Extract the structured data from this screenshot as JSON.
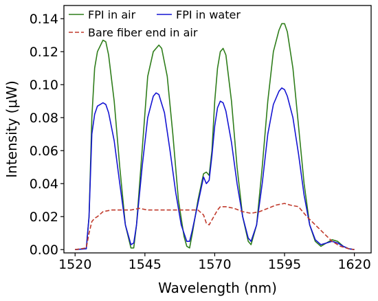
{
  "chart_data": {
    "type": "line",
    "xlabel": "Wavelength (nm)",
    "ylabel": "Intensity (μW)",
    "xlim": [
      1516,
      1626
    ],
    "ylim": [
      -0.002,
      0.148
    ],
    "x_ticks": [
      1520,
      1545,
      1570,
      1595,
      1620
    ],
    "x_tick_labels": [
      "1520",
      "1545",
      "1570",
      "1595",
      "1620"
    ],
    "y_ticks": [
      0.0,
      0.02,
      0.04,
      0.06,
      0.08,
      0.1,
      0.12,
      0.14
    ],
    "y_tick_labels": [
      "0.00",
      "0.02",
      "0.04",
      "0.06",
      "0.08",
      "0.10",
      "0.12",
      "0.14"
    ],
    "grid": false,
    "legend_position": "top-left",
    "series": [
      {
        "name": "FPI in air",
        "color": "#2e7d1a",
        "style": "solid",
        "points": [
          [
            1520,
            0
          ],
          [
            1524,
            0.0005
          ],
          [
            1525,
            0.02
          ],
          [
            1526,
            0.08
          ],
          [
            1527,
            0.11
          ],
          [
            1528,
            0.12
          ],
          [
            1530,
            0.127
          ],
          [
            1531,
            0.126
          ],
          [
            1532,
            0.118
          ],
          [
            1534,
            0.09
          ],
          [
            1536,
            0.05
          ],
          [
            1538,
            0.015
          ],
          [
            1540,
            0.001
          ],
          [
            1541,
            0.001
          ],
          [
            1542,
            0.015
          ],
          [
            1544,
            0.06
          ],
          [
            1546,
            0.105
          ],
          [
            1548,
            0.12
          ],
          [
            1550,
            0.124
          ],
          [
            1551,
            0.122
          ],
          [
            1553,
            0.105
          ],
          [
            1555,
            0.07
          ],
          [
            1557,
            0.03
          ],
          [
            1559,
            0.008
          ],
          [
            1560,
            0.002
          ],
          [
            1561,
            0.001
          ],
          [
            1562,
            0.01
          ],
          [
            1564,
            0.03
          ],
          [
            1566,
            0.046
          ],
          [
            1567,
            0.047
          ],
          [
            1568,
            0.045
          ],
          [
            1569,
            0.06
          ],
          [
            1570,
            0.09
          ],
          [
            1571,
            0.11
          ],
          [
            1572,
            0.12
          ],
          [
            1573,
            0.122
          ],
          [
            1574,
            0.118
          ],
          [
            1576,
            0.09
          ],
          [
            1578,
            0.05
          ],
          [
            1580,
            0.02
          ],
          [
            1582,
            0.005
          ],
          [
            1583,
            0.003
          ],
          [
            1585,
            0.015
          ],
          [
            1587,
            0.05
          ],
          [
            1589,
            0.09
          ],
          [
            1591,
            0.12
          ],
          [
            1593,
            0.133
          ],
          [
            1594,
            0.137
          ],
          [
            1595,
            0.137
          ],
          [
            1596,
            0.132
          ],
          [
            1598,
            0.11
          ],
          [
            1600,
            0.075
          ],
          [
            1602,
            0.04
          ],
          [
            1604,
            0.015
          ],
          [
            1606,
            0.005
          ],
          [
            1608,
            0.002
          ],
          [
            1610,
            0.004
          ],
          [
            1612,
            0.006
          ],
          [
            1614,
            0.005
          ],
          [
            1616,
            0.002
          ],
          [
            1618,
            0.0005
          ],
          [
            1620,
            0
          ]
        ]
      },
      {
        "name": "FPI in water",
        "color": "#1414d2",
        "style": "solid",
        "points": [
          [
            1520,
            0
          ],
          [
            1524,
            0.0005
          ],
          [
            1525,
            0.02
          ],
          [
            1526,
            0.07
          ],
          [
            1527,
            0.082
          ],
          [
            1528,
            0.087
          ],
          [
            1530,
            0.089
          ],
          [
            1531,
            0.088
          ],
          [
            1532,
            0.083
          ],
          [
            1534,
            0.066
          ],
          [
            1536,
            0.04
          ],
          [
            1538,
            0.015
          ],
          [
            1540,
            0.003
          ],
          [
            1541,
            0.004
          ],
          [
            1542,
            0.015
          ],
          [
            1544,
            0.05
          ],
          [
            1546,
            0.08
          ],
          [
            1548,
            0.093
          ],
          [
            1549,
            0.095
          ],
          [
            1550,
            0.094
          ],
          [
            1552,
            0.083
          ],
          [
            1554,
            0.06
          ],
          [
            1556,
            0.035
          ],
          [
            1558,
            0.015
          ],
          [
            1560,
            0.005
          ],
          [
            1561,
            0.005
          ],
          [
            1562,
            0.012
          ],
          [
            1564,
            0.028
          ],
          [
            1566,
            0.044
          ],
          [
            1567,
            0.04
          ],
          [
            1568,
            0.042
          ],
          [
            1569,
            0.057
          ],
          [
            1570,
            0.075
          ],
          [
            1571,
            0.086
          ],
          [
            1572,
            0.09
          ],
          [
            1573,
            0.089
          ],
          [
            1574,
            0.084
          ],
          [
            1576,
            0.065
          ],
          [
            1578,
            0.04
          ],
          [
            1580,
            0.02
          ],
          [
            1582,
            0.007
          ],
          [
            1583,
            0.005
          ],
          [
            1585,
            0.015
          ],
          [
            1587,
            0.04
          ],
          [
            1589,
            0.07
          ],
          [
            1591,
            0.088
          ],
          [
            1593,
            0.096
          ],
          [
            1594,
            0.098
          ],
          [
            1595,
            0.097
          ],
          [
            1596,
            0.093
          ],
          [
            1598,
            0.08
          ],
          [
            1600,
            0.058
          ],
          [
            1602,
            0.033
          ],
          [
            1604,
            0.015
          ],
          [
            1606,
            0.006
          ],
          [
            1608,
            0.003
          ],
          [
            1610,
            0.004
          ],
          [
            1612,
            0.005
          ],
          [
            1614,
            0.004
          ],
          [
            1616,
            0.002
          ],
          [
            1618,
            0.0005
          ],
          [
            1620,
            0
          ]
        ]
      },
      {
        "name": "Bare fiber end in air",
        "color": "#c0392b",
        "style": "dashed",
        "points": [
          [
            1520,
            0
          ],
          [
            1524,
            0.001
          ],
          [
            1525,
            0.01
          ],
          [
            1526,
            0.017
          ],
          [
            1527,
            0.019
          ],
          [
            1528,
            0.02
          ],
          [
            1530,
            0.023
          ],
          [
            1533,
            0.024
          ],
          [
            1536,
            0.024
          ],
          [
            1540,
            0.024
          ],
          [
            1543,
            0.025
          ],
          [
            1546,
            0.024
          ],
          [
            1550,
            0.024
          ],
          [
            1555,
            0.024
          ],
          [
            1560,
            0.024
          ],
          [
            1564,
            0.024
          ],
          [
            1566,
            0.021
          ],
          [
            1567,
            0.016
          ],
          [
            1568,
            0.015
          ],
          [
            1569,
            0.018
          ],
          [
            1571,
            0.024
          ],
          [
            1572,
            0.026
          ],
          [
            1574,
            0.026
          ],
          [
            1577,
            0.025
          ],
          [
            1580,
            0.023
          ],
          [
            1583,
            0.022
          ],
          [
            1586,
            0.023
          ],
          [
            1589,
            0.025
          ],
          [
            1592,
            0.027
          ],
          [
            1595,
            0.028
          ],
          [
            1597,
            0.027
          ],
          [
            1600,
            0.026
          ],
          [
            1603,
            0.02
          ],
          [
            1606,
            0.015
          ],
          [
            1609,
            0.01
          ],
          [
            1612,
            0.005
          ],
          [
            1615,
            0.002
          ],
          [
            1618,
            0.0005
          ],
          [
            1620,
            0
          ]
        ]
      }
    ]
  }
}
